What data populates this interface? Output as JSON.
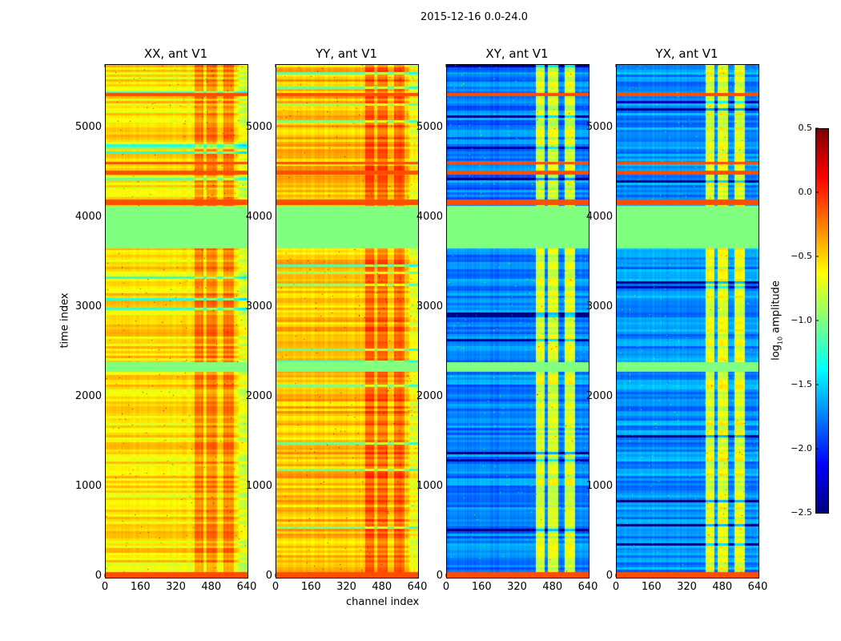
{
  "figure_title": "2015-12-16 0.0-24.0",
  "chart_data": {
    "type": "heatmap",
    "cmap": "jet",
    "xlabel": "channel index",
    "ylabel": "time index",
    "xlim": [
      0,
      640
    ],
    "ylim": [
      0,
      5706
    ],
    "xticks": [
      "0",
      "160",
      "320",
      "480",
      "640"
    ],
    "xtick_values": [
      0,
      160,
      320,
      480,
      640
    ],
    "yticks": [
      "0",
      "1000",
      "2000",
      "3000",
      "4000",
      "5000"
    ],
    "ytick_values": [
      0,
      1000,
      2000,
      3000,
      4000,
      5000
    ],
    "clim": [
      -2.5,
      0.5
    ],
    "colorbar": {
      "label_main": "log",
      "label_sub": "10",
      "label_rest": " amplitude",
      "ticks": [
        "0.5",
        "0.0",
        "−0.5",
        "−1.0",
        "−1.5",
        "−2.0",
        "−2.5"
      ],
      "tick_values": [
        0.5,
        0.0,
        -0.5,
        -1.0,
        -1.5,
        -2.0,
        -2.5
      ]
    },
    "panels": [
      {
        "title": "XX, ant V1",
        "base": -0.55,
        "channel_boost": 0.3
      },
      {
        "title": "YY, ant V1",
        "base": -0.45,
        "channel_boost": 0.3
      },
      {
        "title": "XY, ant V1",
        "base": -1.75,
        "channel_boost": 1.0
      },
      {
        "title": "YX, ant V1",
        "base": -1.7,
        "channel_boost": 1.0
      }
    ],
    "flagged_value": -1.0,
    "flagged_time_ranges": [
      [
        3670,
        4140
      ],
      [
        2290,
        2400
      ]
    ],
    "strong_time_ranges": [
      [
        0,
        60
      ],
      [
        4150,
        4210
      ],
      [
        4490,
        4530
      ],
      [
        4600,
        4630
      ],
      [
        5360,
        5400
      ]
    ],
    "strong_value": -0.1,
    "bright_channel_ranges": [
      [
        400,
        440
      ],
      [
        455,
        500
      ],
      [
        530,
        575
      ]
    ]
  }
}
